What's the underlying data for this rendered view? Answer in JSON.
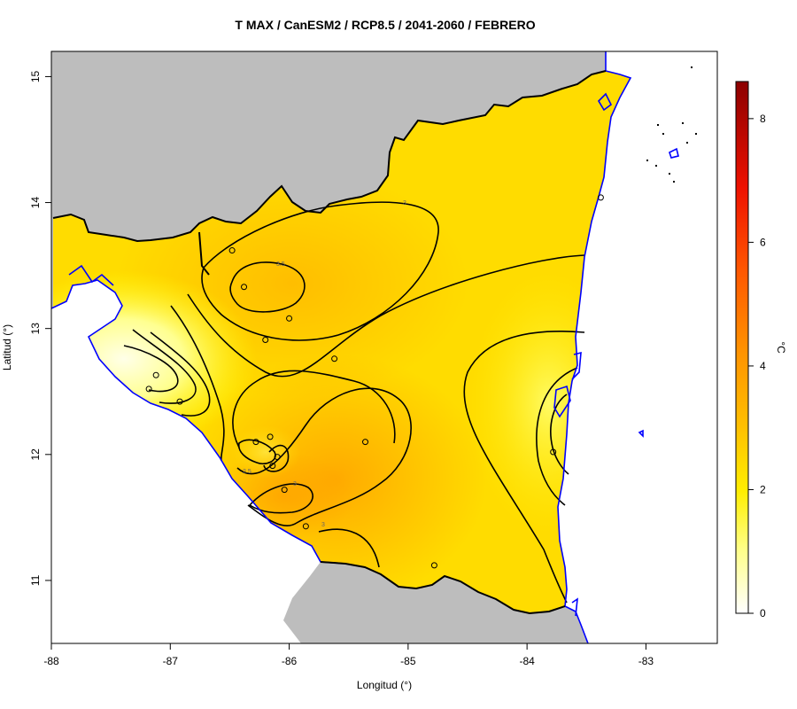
{
  "title": "T MAX / CanESM2 / RCP8.5 / 2041-2060 / FEBRERO",
  "xlabel": "Longitud (°)",
  "ylabel": "Latitud (°)",
  "colorbar": {
    "unit": "°C",
    "range": [
      0,
      8.6
    ],
    "ticks": [
      "0",
      "2",
      "4",
      "6",
      "8"
    ],
    "colors": [
      "#ffffff",
      "#ffff33",
      "#ffcc00",
      "#ff9900",
      "#ff3300",
      "#cc0000",
      "#8b0000"
    ]
  },
  "axes": {
    "x_range": [
      -88,
      -82.4
    ],
    "y_range": [
      10.5,
      15.2
    ],
    "x_ticks": [
      "-88",
      "-87",
      "-86",
      "-85",
      "-84",
      "-83"
    ],
    "y_ticks": [
      "11",
      "12",
      "13",
      "14",
      "15"
    ]
  },
  "map": {
    "land_color": "#bdbdbd",
    "coast_color": "#0000ff",
    "border_color": "#000000"
  },
  "contours": {
    "labels": [
      "3",
      "3.5",
      "2.5",
      "3",
      "3"
    ]
  },
  "stations": [
    {
      "lon": -86.48,
      "lat": 13.62
    },
    {
      "lon": -86.38,
      "lat": 13.33
    },
    {
      "lon": -86.0,
      "lat": 13.08
    },
    {
      "lon": -86.2,
      "lat": 12.91
    },
    {
      "lon": -85.62,
      "lat": 12.76
    },
    {
      "lon": -87.12,
      "lat": 12.63
    },
    {
      "lon": -87.18,
      "lat": 12.52
    },
    {
      "lon": -86.92,
      "lat": 12.42
    },
    {
      "lon": -86.16,
      "lat": 12.14
    },
    {
      "lon": -86.28,
      "lat": 12.1
    },
    {
      "lon": -86.1,
      "lat": 11.98
    },
    {
      "lon": -86.14,
      "lat": 11.91
    },
    {
      "lon": -85.36,
      "lat": 12.1
    },
    {
      "lon": -86.04,
      "lat": 11.72
    },
    {
      "lon": -85.86,
      "lat": 11.43
    },
    {
      "lon": -84.78,
      "lat": 11.12
    },
    {
      "lon": -83.78,
      "lat": 12.02
    },
    {
      "lon": -83.38,
      "lat": 14.04
    }
  ]
}
